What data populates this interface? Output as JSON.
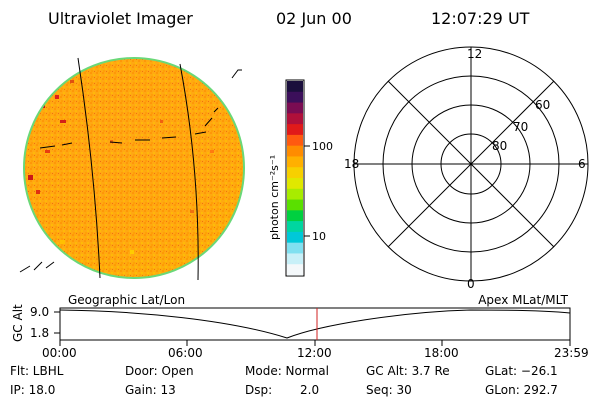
{
  "header": {
    "instrument": "Ultraviolet Imager",
    "date": "02 Jun 00",
    "time": "12:07:29 UT"
  },
  "colorbar": {
    "unit_label": "photon cm⁻²s⁻¹",
    "ticks": [
      "100",
      "10"
    ],
    "colors": [
      "#1a0f3c",
      "#3b0f5a",
      "#7a0c52",
      "#b0103a",
      "#e01a1a",
      "#ff5a10",
      "#ff8c00",
      "#ffb000",
      "#f7d000",
      "#e0e800",
      "#a8ec00",
      "#5ae000",
      "#00d040",
      "#00d6a0",
      "#00c8d8",
      "#80e0f0",
      "#c8f0f8",
      "#f4f8fa"
    ]
  },
  "polar": {
    "mlt_labels": {
      "top": "12",
      "left": "18",
      "right": "6",
      "bottom": "0"
    },
    "lat_labels": [
      "60",
      "70",
      "80"
    ]
  },
  "timeline": {
    "left_label": "Geographic Lat/Lon",
    "right_label": "Apex MLat/MLT",
    "axis_label": "GC Alt",
    "y_ticks": [
      "9.0",
      "1.8"
    ],
    "x_ticks": [
      "00:00",
      "06:00",
      "12:00",
      "18:00",
      "23:59"
    ]
  },
  "footer": {
    "filter": "Flt: LBHL",
    "door": "Door: Open",
    "mode": "Mode: Normal",
    "gcalt": "GC Alt: 3.7 Re",
    "glat": "GLat: −26.1",
    "ip": "IP: 18.0",
    "gain": "Gain: 13",
    "dsp_label": "Dsp:",
    "dsp_value": "2.0",
    "seq": "Seq: 30",
    "glon": "GLon: 292.7"
  }
}
